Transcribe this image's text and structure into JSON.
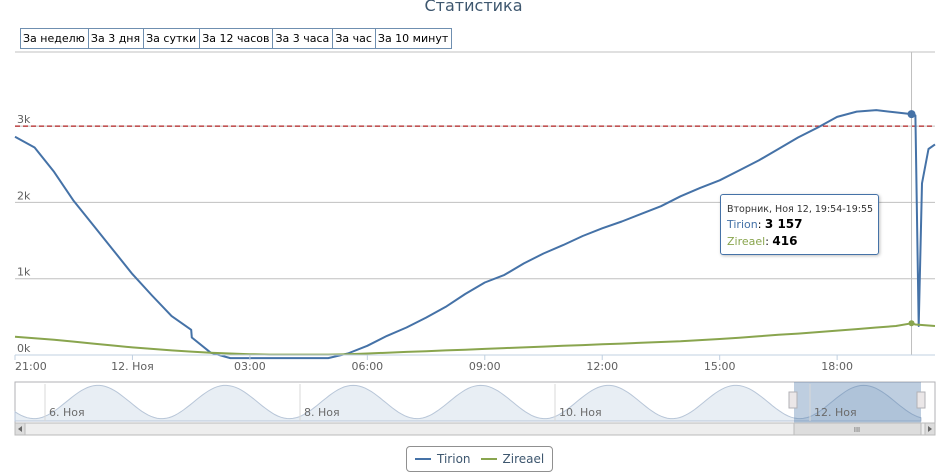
{
  "chart_data": {
    "type": "line",
    "title": "Статистика",
    "range_buttons": [
      "За неделю",
      "За 3 дня",
      "За сутки",
      "За 12 часов",
      "За 3 часа",
      "За час",
      "За 10 минут"
    ],
    "x_ticks": [
      "21:00",
      "12. Ноя",
      "03:00",
      "06:00",
      "09:00",
      "12:00",
      "15:00",
      "18:00"
    ],
    "y_ticks": [
      "0k",
      "1k",
      "2k",
      "3k"
    ],
    "ylim": [
      0,
      3500
    ],
    "reference_line": 3000,
    "grid": true,
    "legend_position": "bottom-center",
    "series": [
      {
        "name": "Tirion",
        "color": "#4572a7",
        "x": [
          "21:00",
          "21:30",
          "22:00",
          "22:30",
          "23:00",
          "23:30",
          "00:00",
          "00:30",
          "01:00",
          "01:30",
          "01:31",
          "02:00",
          "02:30",
          "03:00",
          "03:30",
          "04:00",
          "04:30",
          "05:00",
          "05:30",
          "06:00",
          "06:30",
          "07:00",
          "07:30",
          "08:00",
          "08:30",
          "09:00",
          "09:30",
          "10:00",
          "10:30",
          "11:00",
          "11:30",
          "12:00",
          "12:30",
          "13:00",
          "13:30",
          "14:00",
          "14:30",
          "15:00",
          "15:30",
          "16:00",
          "16:30",
          "17:00",
          "17:30",
          "18:00",
          "18:30",
          "19:00",
          "19:30",
          "19:54",
          "20:00",
          "20:05",
          "20:10",
          "20:20",
          "20:30"
        ],
        "values": [
          2860,
          2720,
          2400,
          2020,
          1700,
          1380,
          1060,
          780,
          510,
          330,
          230,
          30,
          -70,
          -180,
          -190,
          -170,
          -150,
          -90,
          20,
          120,
          250,
          360,
          490,
          630,
          800,
          950,
          1050,
          1200,
          1330,
          1440,
          1560,
          1660,
          1750,
          1850,
          1950,
          2080,
          2190,
          2290,
          2420,
          2550,
          2700,
          2850,
          2980,
          3120,
          3190,
          3210,
          3180,
          3157,
          3140,
          380,
          2250,
          2700,
          2760
        ]
      },
      {
        "name": "Zireael",
        "color": "#89a54e",
        "x": [
          "21:00",
          "21:30",
          "22:00",
          "22:30",
          "23:00",
          "23:30",
          "00:00",
          "00:30",
          "01:00",
          "01:30",
          "02:00",
          "02:30",
          "03:00",
          "03:30",
          "04:00",
          "04:30",
          "05:00",
          "05:30",
          "06:00",
          "06:30",
          "07:00",
          "07:30",
          "08:00",
          "08:30",
          "09:00",
          "09:30",
          "10:00",
          "10:30",
          "11:00",
          "11:30",
          "12:00",
          "12:30",
          "13:00",
          "13:30",
          "14:00",
          "14:30",
          "15:00",
          "15:30",
          "16:00",
          "16:30",
          "17:00",
          "17:30",
          "18:00",
          "18:30",
          "19:00",
          "19:30",
          "19:54",
          "20:00",
          "20:30"
        ],
        "values": [
          240,
          220,
          200,
          175,
          150,
          125,
          100,
          80,
          60,
          45,
          30,
          20,
          10,
          5,
          5,
          5,
          5,
          10,
          20,
          30,
          40,
          50,
          60,
          70,
          80,
          90,
          100,
          110,
          120,
          130,
          140,
          150,
          160,
          170,
          180,
          195,
          210,
          225,
          245,
          265,
          280,
          300,
          320,
          340,
          360,
          380,
          416,
          400,
          380
        ]
      }
    ],
    "tooltip": {
      "header": "Вторник, Ноя 12, 19:54-19:55",
      "rows": [
        {
          "name": "Tirion",
          "value": "3 157",
          "color": "#4572a7"
        },
        {
          "name": "Zireael",
          "value": "416",
          "color": "#89a54e"
        }
      ]
    },
    "navigator": {
      "labels": [
        "6. Ноя",
        "8. Ноя",
        "10. Ноя",
        "12. Ноя"
      ],
      "handle_glyph": "III"
    }
  }
}
